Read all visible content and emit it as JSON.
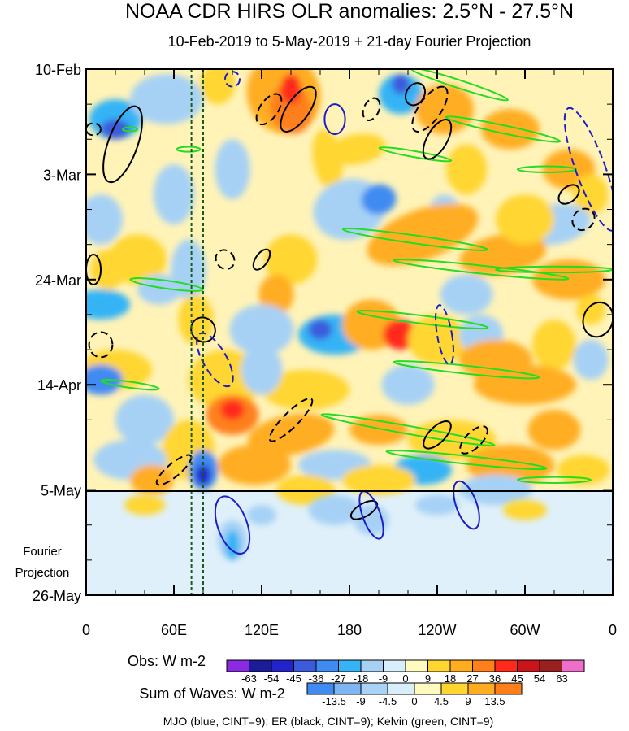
{
  "chart_data": {
    "type": "heatmap",
    "title": "NOAA CDR HIRS OLR anomalies: 2.5°N - 27.5°N",
    "subtitle": "10-Feb-2019 to 5-May-2019 + 21-day Fourier Projection",
    "x_ticks": [
      "0",
      "60E",
      "120E",
      "180",
      "120W",
      "60W",
      "0"
    ],
    "x_tick_values": [
      0,
      60,
      120,
      180,
      240,
      300,
      360
    ],
    "xlim": [
      0,
      360
    ],
    "y_ticks": [
      "10-Feb",
      "3-Mar",
      "24-Mar",
      "14-Apr",
      "5-May",
      "26-May"
    ],
    "y_tick_days": [
      0,
      21,
      42,
      63,
      84,
      105
    ],
    "ylim_days": [
      0,
      105
    ],
    "projection_label_line1": "Fourier",
    "projection_label_line2": "Projection",
    "projection_start_day": 84,
    "obs_colorbar": {
      "label": "Obs: W m-2",
      "levels": [
        "-63",
        "-54",
        "-45",
        "-36",
        "-27",
        "-18",
        "-9",
        "0",
        "9",
        "18",
        "27",
        "36",
        "45",
        "54",
        "63"
      ],
      "colors": [
        "#8a2be2",
        "#1c1c9a",
        "#2323cc",
        "#3b5bdb",
        "#3f8bf2",
        "#36b4f5",
        "#a6d1f5",
        "#d8eefa",
        "#fffac0",
        "#ffd630",
        "#ffad20",
        "#ff7f1a",
        "#ff2a1a",
        "#c8141a",
        "#9a1f1f",
        "#ee6eca"
      ]
    },
    "waves_colorbar": {
      "label": "Sum of Waves: W m-2",
      "levels": [
        "-13.5",
        "-9",
        "-4.5",
        "0",
        "4.5",
        "9",
        "13.5"
      ],
      "colors": [
        "#3f8bf2",
        "#7db6f2",
        "#a9d2f5",
        "#d8eefa",
        "#fffac0",
        "#ffd630",
        "#ffad20",
        "#ff7f1a"
      ]
    },
    "footer": "MJO (blue, CINT=9); ER (black, CINT=9); Kelvin (green, CINT=9)",
    "series": [
      {
        "name": "MJO",
        "color": "#1c1cc8"
      },
      {
        "name": "ER",
        "color": "#000000"
      },
      {
        "name": "Kelvin",
        "color": "#22dd22"
      }
    ],
    "reference_lines_lon": [
      72,
      80
    ]
  }
}
